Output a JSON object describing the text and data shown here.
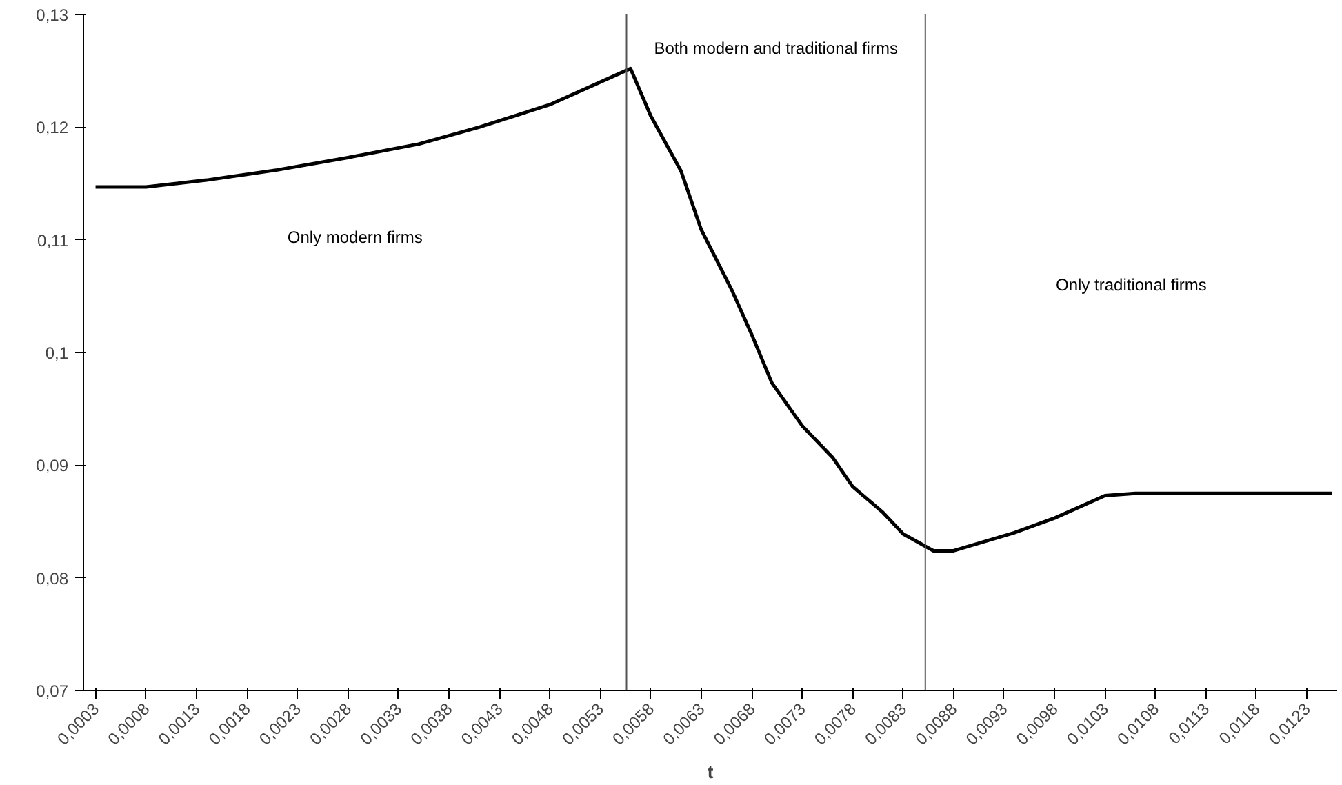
{
  "chart_data": {
    "type": "line",
    "xlabel": "t",
    "x": [
      0.0003,
      0.0008,
      0.0014,
      0.0021,
      0.0028,
      0.0035,
      0.0041,
      0.0048,
      0.0056,
      0.0058,
      0.0061,
      0.0063,
      0.0066,
      0.0068,
      0.007,
      0.0073,
      0.0076,
      0.0078,
      0.0081,
      0.0083,
      0.0086,
      0.0088,
      0.0094,
      0.0098,
      0.0103,
      0.0106,
      0.01255
    ],
    "series": [
      {
        "color": "#000000",
        "values": [
          0.1147,
          0.1147,
          0.1153,
          0.1162,
          0.1173,
          0.1185,
          0.12,
          0.122,
          0.1252,
          0.121,
          0.1161,
          0.1109,
          0.1056,
          0.1016,
          0.0973,
          0.0935,
          0.0907,
          0.0881,
          0.0858,
          0.0839,
          0.0824,
          0.0824,
          0.084,
          0.0853,
          0.0873,
          0.0875,
          0.0875
        ]
      }
    ],
    "xlim": [
      0.00018,
      0.0126
    ],
    "xticks": [
      {
        "value": 0.0003,
        "label": "0,0003"
      },
      {
        "value": 0.0008,
        "label": "0,0008"
      },
      {
        "value": 0.0013,
        "label": "0,0013"
      },
      {
        "value": 0.0018,
        "label": "0,0018"
      },
      {
        "value": 0.0023,
        "label": "0,0023"
      },
      {
        "value": 0.0028,
        "label": "0,0028"
      },
      {
        "value": 0.0033,
        "label": "0,0033"
      },
      {
        "value": 0.0038,
        "label": "0,0038"
      },
      {
        "value": 0.0043,
        "label": "0,0043"
      },
      {
        "value": 0.0048,
        "label": "0,0048"
      },
      {
        "value": 0.0053,
        "label": "0,0053"
      },
      {
        "value": 0.0058,
        "label": "0,0058"
      },
      {
        "value": 0.0063,
        "label": "0,0063"
      },
      {
        "value": 0.0068,
        "label": "0,0068"
      },
      {
        "value": 0.0073,
        "label": "0,0073"
      },
      {
        "value": 0.0078,
        "label": "0,0078"
      },
      {
        "value": 0.0083,
        "label": "0,0083"
      },
      {
        "value": 0.0088,
        "label": "0,0088"
      },
      {
        "value": 0.0093,
        "label": "0,0093"
      },
      {
        "value": 0.0098,
        "label": "0,0098"
      },
      {
        "value": 0.0103,
        "label": "0,0103"
      },
      {
        "value": 0.0108,
        "label": "0,0108"
      },
      {
        "value": 0.0113,
        "label": "0,0113"
      },
      {
        "value": 0.0118,
        "label": "0,0118"
      },
      {
        "value": 0.0123,
        "label": "0,0123"
      }
    ],
    "ylim": [
      0.07,
      0.13
    ],
    "yticks": [
      {
        "value": 0.07,
        "label": "0,07"
      },
      {
        "value": 0.08,
        "label": "0,08"
      },
      {
        "value": 0.09,
        "label": "0,09"
      },
      {
        "value": 0.1,
        "label": "0,1"
      },
      {
        "value": 0.11,
        "label": "0,11"
      },
      {
        "value": 0.12,
        "label": "0,12"
      },
      {
        "value": 0.13,
        "label": "0,13"
      }
    ],
    "ref_lines": [
      {
        "axis": "x",
        "value": 0.00556,
        "color": "#555555"
      },
      {
        "axis": "x",
        "value": 0.00852,
        "color": "#555555"
      }
    ],
    "annotations": [
      "Only modern firms",
      "Both modern and traditional firms",
      "Only traditional firms"
    ],
    "grid": false
  }
}
